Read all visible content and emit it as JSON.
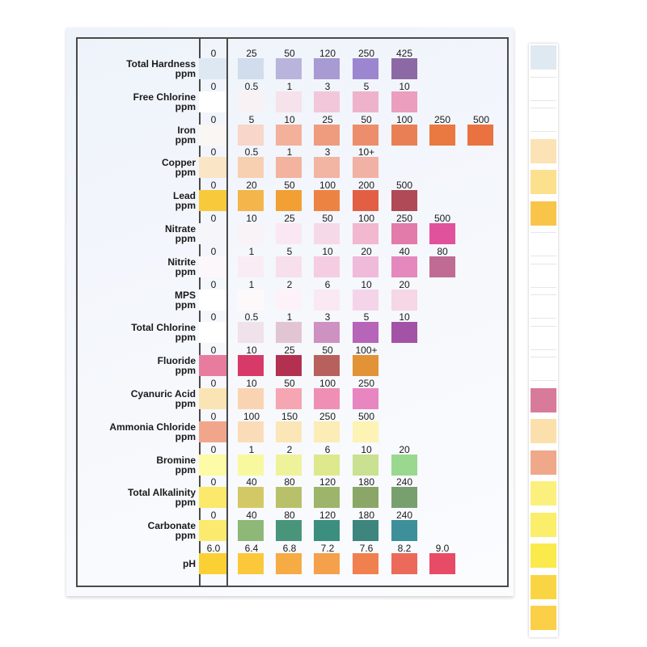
{
  "chart_data": {
    "type": "table",
    "rows": [
      {
        "name": "Total Hardness",
        "unit": "ppm",
        "levels": [
          "0",
          "25",
          "50",
          "120",
          "250",
          "425"
        ],
        "colors": [
          "#dde8f2",
          "#d1dcec",
          "#b8b4db",
          "#a89ad2",
          "#9c86cf",
          "#8c69a5"
        ]
      },
      {
        "name": "Free Chlorine",
        "unit": "ppm",
        "levels": [
          "0",
          "0.5",
          "1",
          "3",
          "5",
          "10"
        ],
        "colors": [
          "#ffffff",
          "#f8f2f5",
          "#f6e2ea",
          "#f2c7d9",
          "#eeb3cb",
          "#eb9ebe"
        ]
      },
      {
        "name": "Iron",
        "unit": "ppm",
        "levels": [
          "0",
          "5",
          "10",
          "25",
          "50",
          "100",
          "250",
          "500"
        ],
        "colors": [
          "#f9f6f4",
          "#f8d6ca",
          "#f3b09a",
          "#ef9c7e",
          "#ec8e6b",
          "#e98055",
          "#e97940",
          "#e97240"
        ]
      },
      {
        "name": "Copper",
        "unit": "ppm",
        "levels": [
          "0",
          "0.5",
          "1",
          "3",
          "10+"
        ],
        "colors": [
          "#fae5c6",
          "#f6d0b0",
          "#f3b39e",
          "#f2b4a3",
          "#f2b1a5"
        ]
      },
      {
        "name": "Lead",
        "unit": "ppm",
        "levels": [
          "0",
          "20",
          "50",
          "100",
          "200",
          "500"
        ],
        "colors": [
          "#f8c93a",
          "#f4b54a",
          "#f2a033",
          "#ed8343",
          "#e35f44",
          "#b04a57"
        ]
      },
      {
        "name": "Nitrate",
        "unit": "ppm",
        "levels": [
          "0",
          "10",
          "25",
          "50",
          "100",
          "250",
          "500"
        ],
        "colors": [
          "#f6f6fa",
          "#f9f3f7",
          "#f9e8f3",
          "#f6d9e8",
          "#f1b8d0",
          "#e27aaa",
          "#e0529c"
        ]
      },
      {
        "name": "Nitrite",
        "unit": "ppm",
        "levels": [
          "0",
          "1",
          "5",
          "10",
          "20",
          "40",
          "80"
        ],
        "colors": [
          "#fcf7fa",
          "#f9ecf4",
          "#f7dfec",
          "#f4cde2",
          "#f0badb",
          "#e588bd",
          "#c06b93"
        ]
      },
      {
        "name": "MPS",
        "unit": "ppm",
        "levels": [
          "0",
          "1",
          "2",
          "6",
          "10",
          "20"
        ],
        "colors": [
          "#ffffff",
          "#fdf8fa",
          "#fcf2f7",
          "#fae8f3",
          "#f4d4e8",
          "#f5d7e6"
        ]
      },
      {
        "name": "Total Chlorine",
        "unit": "ppm",
        "levels": [
          "0",
          "0.5",
          "1",
          "3",
          "5",
          "10"
        ],
        "colors": [
          "#ffffff",
          "#efe2e8",
          "#e2c5d3",
          "#cd91c2",
          "#b765b8",
          "#a353a6"
        ]
      },
      {
        "name": "Fluoride",
        "unit": "ppm",
        "levels": [
          "0",
          "10",
          "25",
          "50",
          "100+"
        ],
        "colors": [
          "#e87c9f",
          "#d73a68",
          "#b43050",
          "#b8605b",
          "#e19336"
        ]
      },
      {
        "name": "Cyanuric Acid",
        "unit": "ppm",
        "levels": [
          "0",
          "10",
          "50",
          "100",
          "250"
        ],
        "colors": [
          "#fbe4b4",
          "#fad4b2",
          "#f5a6b2",
          "#f08fb5",
          "#e886c1"
        ]
      },
      {
        "name": "Ammonia Chloride",
        "unit": "ppm",
        "levels": [
          "0",
          "100",
          "150",
          "250",
          "500"
        ],
        "colors": [
          "#f1a68c",
          "#fbdcb8",
          "#fbe6b8",
          "#fcecb5",
          "#fdf3b5"
        ]
      },
      {
        "name": "Bromine",
        "unit": "ppm",
        "levels": [
          "0",
          "1",
          "2",
          "6",
          "10",
          "20"
        ],
        "colors": [
          "#fdfba5",
          "#f8f99e",
          "#eef29a",
          "#dde98c",
          "#c9e190",
          "#99d88e"
        ]
      },
      {
        "name": "Total Alkalinity",
        "unit": "ppm",
        "levels": [
          "0",
          "40",
          "80",
          "120",
          "180",
          "240"
        ],
        "colors": [
          "#fae96a",
          "#d2c966",
          "#b8c06a",
          "#9cb56b",
          "#8aa767",
          "#789f6e"
        ]
      },
      {
        "name": "Carbonate",
        "unit": "ppm",
        "levels": [
          "0",
          "40",
          "80",
          "120",
          "180",
          "240"
        ],
        "colors": [
          "#fbea6e",
          "#8db878",
          "#49957b",
          "#3c8f7f",
          "#3e857e",
          "#3d8f9a"
        ]
      },
      {
        "name": "pH",
        "unit": "",
        "levels": [
          "6.0",
          "6.4",
          "6.8",
          "7.2",
          "7.6",
          "8.2",
          "9.0"
        ],
        "colors": [
          "#fbd034",
          "#fbc83c",
          "#f6ab45",
          "#f5a04b",
          "#f1804f",
          "#ec6a5a",
          "#e84b66"
        ]
      }
    ]
  },
  "test_strip": {
    "pads": [
      "#dfe9f2",
      "#ffffff",
      "#ffffff",
      "#fbe3b5",
      "#fbe08e",
      "#f8c54a",
      "#ffffff",
      "#ffffff",
      "#ffffff",
      "#ffffff",
      "#ffffff",
      "#d87a9a",
      "#fce0ac",
      "#efa98a",
      "#fbf07e",
      "#fbee6a",
      "#fbea4c",
      "#fad543",
      "#fbcf47"
    ]
  }
}
